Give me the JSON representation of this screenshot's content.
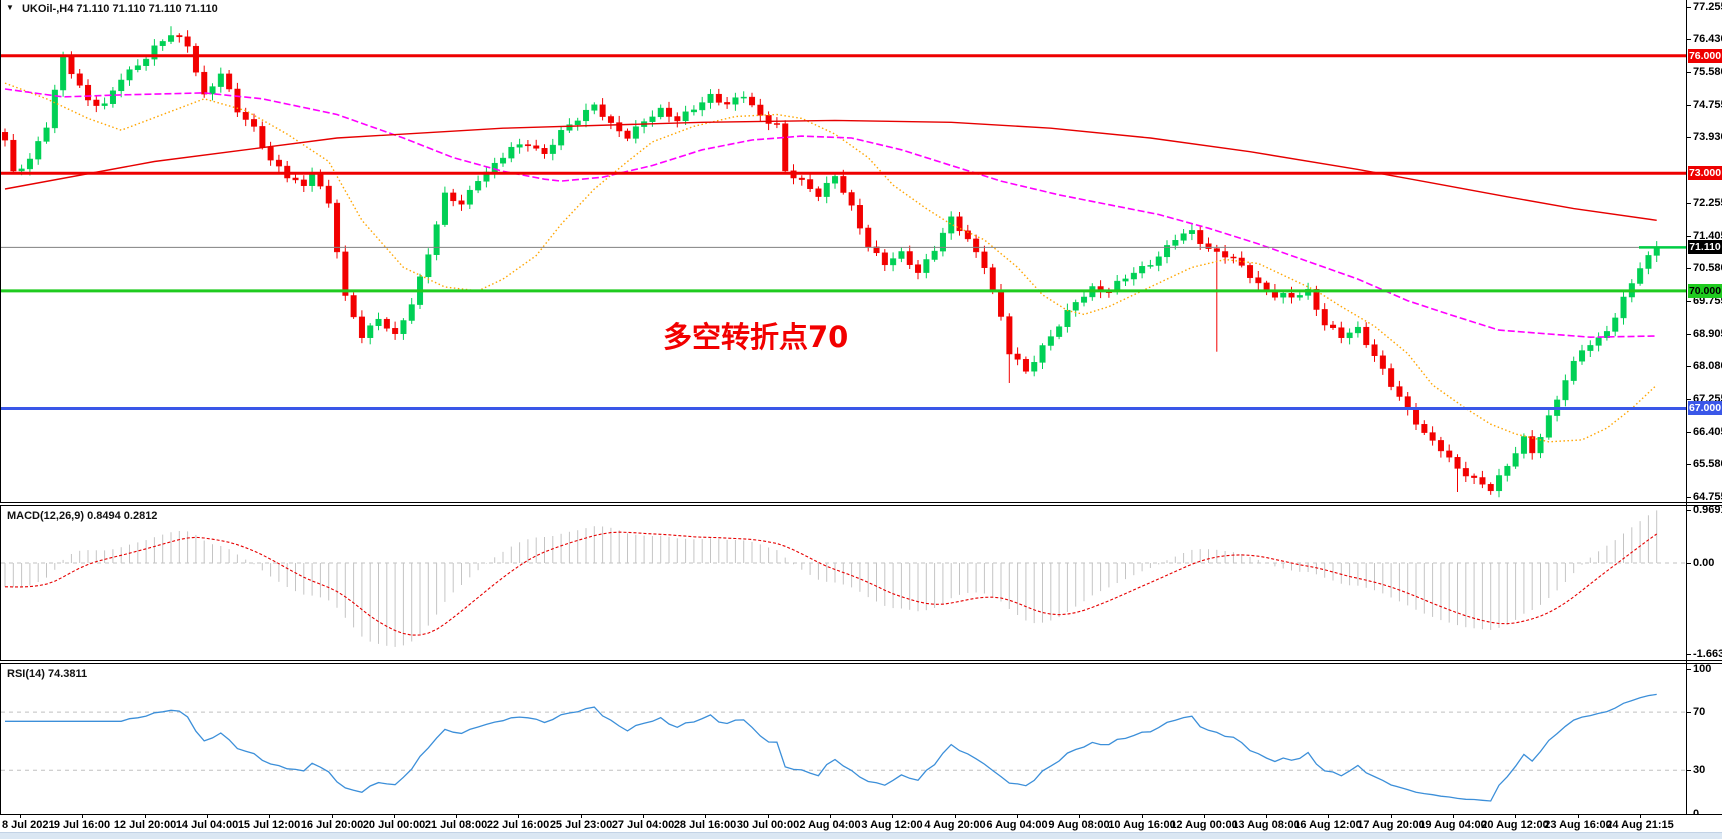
{
  "header": {
    "dropdown_icon": "▼",
    "symbol": "UKOil-,H4",
    "quotes": "71.110 71.110 71.110 71.110"
  },
  "indicator_labels": {
    "macd": "MACD(12,26,9) 0.8494 0.2812",
    "rsi": "RSI(14) 74.3811"
  },
  "annotation": {
    "text": "多空转折点70",
    "color": "#f20000"
  },
  "colors": {
    "bull": "#00d055",
    "bear": "#f20000",
    "ma_fast": "#ffa500",
    "ma_mid": "#ff00ff",
    "ma_slow": "#e60000",
    "macd_hist": "#c4c4c4",
    "macd_signal": "#e60000",
    "rsi_line": "#3c8fd9",
    "grid_dash": "#c0c0c0",
    "last_price_tick": "#00cc44",
    "axis_text": "#000000"
  },
  "chart_data": [
    {
      "type": "candlestick",
      "title": "UKOil-,H4",
      "timeframe": "H4",
      "ylim": [
        64.755,
        77.255
      ],
      "y_tick_labels": [
        77.255,
        76.43,
        75.58,
        74.755,
        73.93,
        72.255,
        71.405,
        70.58,
        69.755,
        68.905,
        68.08,
        67.255,
        66.405,
        65.58,
        64.755
      ],
      "x_tick_labels": [
        "8 Jul 2021",
        "9 Jul 16:00",
        "12 Jul 20:00",
        "14 Jul 04:00",
        "15 Jul 12:00",
        "16 Jul 20:00",
        "20 Jul 00:00",
        "21 Jul 08:00",
        "22 Jul 16:00",
        "25 Jul 23:00",
        "27 Jul 04:00",
        "28 Jul 16:00",
        "30 Jul 00:00",
        "2 Aug 04:00",
        "3 Aug 12:00",
        "4 Aug 20:00",
        "6 Aug 04:00",
        "9 Aug 08:00",
        "10 Aug 16:00",
        "12 Aug 00:00",
        "13 Aug 08:00",
        "16 Aug 12:00",
        "17 Aug 20:00",
        "19 Aug 04:00",
        "20 Aug 12:00",
        "23 Aug 16:00",
        "24 Aug 21:15"
      ],
      "n_bars": 200,
      "last_price": 71.11,
      "close_waypoints": [
        [
          0,
          73.8
        ],
        [
          1,
          73.0
        ],
        [
          3,
          73.4
        ],
        [
          5,
          74.2
        ],
        [
          7,
          75.9
        ],
        [
          8,
          75.6
        ],
        [
          10,
          74.9
        ],
        [
          12,
          74.7
        ],
        [
          14,
          75.4
        ],
        [
          16,
          75.8
        ],
        [
          18,
          76.2
        ],
        [
          20,
          76.5
        ],
        [
          22,
          76.3
        ],
        [
          24,
          75.0
        ],
        [
          26,
          75.5
        ],
        [
          28,
          74.6
        ],
        [
          30,
          74.2
        ],
        [
          32,
          73.3
        ],
        [
          34,
          72.9
        ],
        [
          36,
          72.7
        ],
        [
          37,
          73.1
        ],
        [
          39,
          72.2
        ],
        [
          41,
          69.8
        ],
        [
          43,
          68.9
        ],
        [
          45,
          69.3
        ],
        [
          47,
          68.8
        ],
        [
          49,
          69.7
        ],
        [
          51,
          71.0
        ],
        [
          53,
          72.4
        ],
        [
          55,
          72.2
        ],
        [
          57,
          72.9
        ],
        [
          59,
          73.2
        ],
        [
          61,
          73.6
        ],
        [
          63,
          73.8
        ],
        [
          65,
          73.5
        ],
        [
          67,
          74.0
        ],
        [
          69,
          74.4
        ],
        [
          71,
          74.8
        ],
        [
          73,
          74.2
        ],
        [
          75,
          73.9
        ],
        [
          77,
          74.4
        ],
        [
          79,
          74.6
        ],
        [
          81,
          74.3
        ],
        [
          83,
          74.7
        ],
        [
          85,
          75.0
        ],
        [
          87,
          74.7
        ],
        [
          89,
          75.0
        ],
        [
          91,
          74.5
        ],
        [
          93,
          74.2
        ],
        [
          94,
          73.0
        ],
        [
          96,
          72.8
        ],
        [
          98,
          72.5
        ],
        [
          100,
          72.9
        ],
        [
          102,
          72.1
        ],
        [
          104,
          71.2
        ],
        [
          106,
          70.7
        ],
        [
          108,
          70.9
        ],
        [
          110,
          70.5
        ],
        [
          112,
          71.1
        ],
        [
          114,
          71.8
        ],
        [
          116,
          71.3
        ],
        [
          118,
          70.7
        ],
        [
          120,
          69.3
        ],
        [
          121,
          68.4
        ],
        [
          123,
          67.95
        ],
        [
          125,
          68.6
        ],
        [
          127,
          69.1
        ],
        [
          129,
          69.7
        ],
        [
          131,
          70.1
        ],
        [
          133,
          70.0
        ],
        [
          135,
          70.3
        ],
        [
          137,
          70.6
        ],
        [
          139,
          70.9
        ],
        [
          141,
          71.3
        ],
        [
          143,
          71.5
        ],
        [
          145,
          71.1
        ],
        [
          147,
          70.9
        ],
        [
          149,
          70.6
        ],
        [
          151,
          70.2
        ],
        [
          153,
          69.9
        ],
        [
          155,
          69.8
        ],
        [
          157,
          70.0
        ],
        [
          159,
          69.2
        ],
        [
          161,
          68.8
        ],
        [
          163,
          69.0
        ],
        [
          165,
          68.4
        ],
        [
          167,
          67.6
        ],
        [
          169,
          66.9
        ],
        [
          171,
          66.4
        ],
        [
          173,
          66.0
        ],
        [
          175,
          65.4
        ],
        [
          177,
          65.2
        ],
        [
          179,
          65.0
        ],
        [
          181,
          65.5
        ],
        [
          183,
          66.2
        ],
        [
          184,
          65.9
        ],
        [
          186,
          66.8
        ],
        [
          188,
          67.7
        ],
        [
          190,
          68.5
        ],
        [
          192,
          68.8
        ],
        [
          194,
          69.3
        ],
        [
          196,
          70.2
        ],
        [
          198,
          70.9
        ],
        [
          199,
          71.11
        ]
      ],
      "wick_overrides": [
        {
          "i": 20,
          "high": 76.75
        },
        {
          "i": 121,
          "low": 67.65
        },
        {
          "i": 146,
          "low": 68.45
        },
        {
          "i": 175,
          "low": 64.87
        }
      ],
      "horizontal_lines": [
        {
          "price": 76.0,
          "label": "76.000",
          "color": "#ee0000",
          "box": "#ee0000",
          "text": "#ffffff",
          "lw": 3
        },
        {
          "price": 73.0,
          "label": "73.000",
          "color": "#ee0000",
          "box": "#ee0000",
          "text": "#ffffff",
          "lw": 3
        },
        {
          "price": 71.11,
          "label": "71.110",
          "color": "#808080",
          "box": "#000000",
          "text": "#ffffff",
          "lw": 1
        },
        {
          "price": 70.0,
          "label": "70.000",
          "color": "#1fcb1f",
          "box": "#1fcb1f",
          "text": "#000000",
          "lw": 3
        },
        {
          "price": 67.0,
          "label": "67.000",
          "color": "#3a57e8",
          "box": "#3a57e8",
          "text": "#ffffff",
          "lw": 3
        }
      ],
      "moving_averages": [
        {
          "name": "fast-ma",
          "style": "dotted",
          "color": "#ffa500",
          "path": [
            [
              0,
              75.3
            ],
            [
              5,
              74.9
            ],
            [
              10,
              74.4
            ],
            [
              14,
              74.1
            ],
            [
              19,
              74.5
            ],
            [
              24,
              74.9
            ],
            [
              29,
              74.6
            ],
            [
              34,
              74.0
            ],
            [
              39,
              73.3
            ],
            [
              43,
              71.8
            ],
            [
              48,
              70.6
            ],
            [
              53,
              70.1
            ],
            [
              57,
              70.0
            ],
            [
              60,
              70.3
            ],
            [
              64,
              70.9
            ],
            [
              67,
              71.7
            ],
            [
              71,
              72.6
            ],
            [
              75,
              73.3
            ],
            [
              78,
              73.8
            ],
            [
              83,
              74.2
            ],
            [
              88,
              74.45
            ],
            [
              93,
              74.5
            ],
            [
              96,
              74.4
            ],
            [
              100,
              74.0
            ],
            [
              104,
              73.4
            ],
            [
              107,
              72.7
            ],
            [
              111,
              72.1
            ],
            [
              114,
              71.7
            ],
            [
              118,
              71.3
            ],
            [
              122,
              70.6
            ],
            [
              125,
              69.9
            ],
            [
              128,
              69.5
            ],
            [
              130,
              69.4
            ],
            [
              133,
              69.6
            ],
            [
              136,
              69.9
            ],
            [
              140,
              70.3
            ],
            [
              143,
              70.6
            ],
            [
              147,
              70.8
            ],
            [
              151,
              70.7
            ],
            [
              154,
              70.4
            ],
            [
              158,
              70.0
            ],
            [
              161,
              69.6
            ],
            [
              165,
              69.1
            ],
            [
              169,
              68.4
            ],
            [
              172,
              67.6
            ],
            [
              176,
              67.0
            ],
            [
              179,
              66.6
            ],
            [
              182,
              66.35
            ],
            [
              186,
              66.15
            ],
            [
              190,
              66.2
            ],
            [
              193,
              66.5
            ],
            [
              196,
              67.0
            ],
            [
              199,
              67.6
            ]
          ]
        },
        {
          "name": "mid-ma",
          "style": "dashed",
          "color": "#ff00ff",
          "path": [
            [
              0,
              75.15
            ],
            [
              7,
              74.95
            ],
            [
              14,
              75.0
            ],
            [
              24,
              75.05
            ],
            [
              31,
              74.9
            ],
            [
              40,
              74.5
            ],
            [
              48,
              73.9
            ],
            [
              54,
              73.4
            ],
            [
              60,
              73.05
            ],
            [
              65,
              72.85
            ],
            [
              67,
              72.8
            ],
            [
              72,
              72.9
            ],
            [
              78,
              73.2
            ],
            [
              84,
              73.6
            ],
            [
              90,
              73.85
            ],
            [
              96,
              73.95
            ],
            [
              102,
              73.9
            ],
            [
              108,
              73.6
            ],
            [
              114,
              73.2
            ],
            [
              120,
              72.8
            ],
            [
              127,
              72.45
            ],
            [
              133,
              72.2
            ],
            [
              139,
              71.95
            ],
            [
              145,
              71.6
            ],
            [
              151,
              71.2
            ],
            [
              157,
              70.75
            ],
            [
              163,
              70.3
            ],
            [
              169,
              69.75
            ],
            [
              174,
              69.4
            ],
            [
              180,
              69.0
            ],
            [
              186,
              68.9
            ],
            [
              191,
              68.82
            ],
            [
              199,
              68.85
            ]
          ]
        },
        {
          "name": "slow-ma",
          "style": "solid",
          "color": "#e60000",
          "path": [
            [
              0,
              72.6
            ],
            [
              18,
              73.3
            ],
            [
              40,
              73.9
            ],
            [
              60,
              74.15
            ],
            [
              84,
              74.3
            ],
            [
              100,
              74.35
            ],
            [
              114,
              74.3
            ],
            [
              126,
              74.15
            ],
            [
              138,
              73.9
            ],
            [
              150,
              73.55
            ],
            [
              163,
              73.1
            ],
            [
              172,
              72.75
            ],
            [
              181,
              72.4
            ],
            [
              189,
              72.1
            ],
            [
              199,
              71.8
            ]
          ]
        }
      ]
    },
    {
      "type": "bar",
      "name": "MACD",
      "params": {
        "fast": 12,
        "slow": 26,
        "signal": 9
      },
      "current_macd": 0.8494,
      "current_signal": 0.2812,
      "y_ticks": [
        0.9691,
        0.0,
        -1.6634
      ],
      "ylim": [
        -1.72,
        1.05
      ],
      "derived_from": "close_waypoints"
    },
    {
      "type": "line",
      "name": "RSI",
      "params": {
        "period": 14
      },
      "current": 74.3811,
      "y_ticks": [
        100,
        70,
        30,
        0
      ],
      "levels": [
        70,
        30
      ],
      "ylim": [
        0,
        100
      ],
      "derived_from": "close_waypoints"
    }
  ]
}
